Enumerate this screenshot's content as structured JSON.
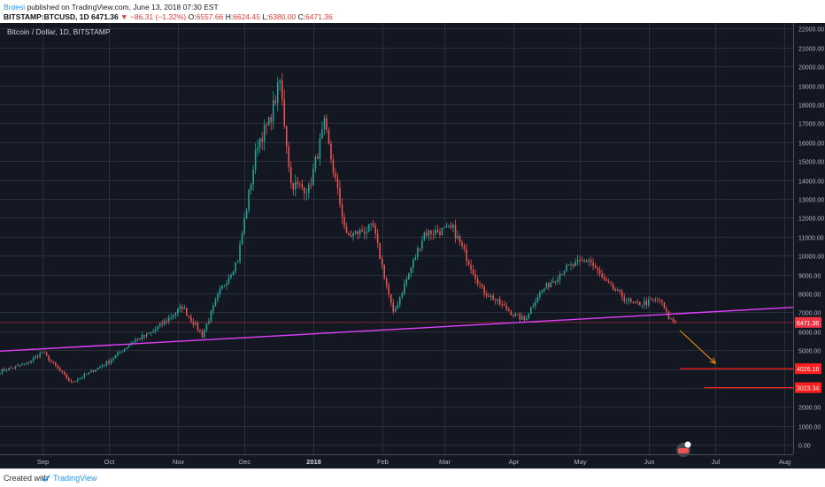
{
  "header": {
    "author": "Brdesi",
    "published": "published on TradingView.com, June 13, 2018 07:30 EST",
    "symbol": "BITSTAMP:BTCUSD, 1D",
    "last": "6471.36",
    "change": "▼ −86.31 (−1.32%)",
    "o_label": "O:",
    "o_value": "6557.66",
    "h_label": "H:",
    "h_value": "6624.45",
    "l_label": "L:",
    "l_value": "6380.00",
    "c_label": "C:",
    "c_value": "6471.36"
  },
  "footer": {
    "created_with": "Created with",
    "brand": "TradingView"
  },
  "colors": {
    "background": "#131722",
    "grid": "#2a2e39",
    "up": "#26a69a",
    "down": "#ef5350",
    "trendline": "#e040fb",
    "arrow": "#ff9800",
    "target": "#ff1f1f",
    "price_tag": "#f23645"
  },
  "chart_data": {
    "type": "candlestick",
    "title": "Bitcoin / Dollar, 1D, BITSTAMP",
    "x_ticks": [
      "Sep",
      "Oct",
      "Nov",
      "Dec",
      "2018",
      "Feb",
      "Mar",
      "Apr",
      "May",
      "Jun",
      "Jul",
      "Aug"
    ],
    "x_tick_dates": [
      "2017-09-01",
      "2017-10-01",
      "2017-11-01",
      "2017-12-01",
      "2018-01-01",
      "2018-02-01",
      "2018-03-01",
      "2018-04-01",
      "2018-05-01",
      "2018-06-01",
      "2018-07-01",
      "2018-08-01"
    ],
    "y_ticks": [
      "22000.00",
      "21000.00",
      "20000.00",
      "19000.00",
      "18000.00",
      "17000.00",
      "16000.00",
      "15000.00",
      "14000.00",
      "13000.00",
      "12000.00",
      "11000.00",
      "10000.00",
      "9000.00",
      "8000.00",
      "7000.00",
      "6000.00",
      "5000.00",
      "4000.00",
      "3000.00",
      "2000.00",
      "1000.00",
      "0.00"
    ],
    "y_tick_values": [
      22000,
      21000,
      20000,
      19000,
      18000,
      17000,
      16000,
      15000,
      14000,
      13000,
      12000,
      11000,
      10000,
      9000,
      8000,
      7000,
      6000,
      5000,
      4000,
      3000,
      2000,
      1000,
      0
    ],
    "ylim": [
      -500,
      22300
    ],
    "x_range": [
      "2017-08-13",
      "2018-08-05"
    ],
    "price_anchors": [
      {
        "date": "2017-08-13",
        "close": 3900
      },
      {
        "date": "2017-08-25",
        "close": 4300
      },
      {
        "date": "2017-09-01",
        "close": 4900
      },
      {
        "date": "2017-09-14",
        "close": 3300
      },
      {
        "date": "2017-09-22",
        "close": 3800
      },
      {
        "date": "2017-10-01",
        "close": 4400
      },
      {
        "date": "2017-10-12",
        "close": 5500
      },
      {
        "date": "2017-10-20",
        "close": 5900
      },
      {
        "date": "2017-11-03",
        "close": 7300
      },
      {
        "date": "2017-11-12",
        "close": 5800
      },
      {
        "date": "2017-11-20",
        "close": 8100
      },
      {
        "date": "2017-11-28",
        "close": 9800
      },
      {
        "date": "2017-12-07",
        "close": 16000
      },
      {
        "date": "2017-12-12",
        "close": 17000
      },
      {
        "date": "2017-12-17",
        "close": 19200
      },
      {
        "date": "2017-12-22",
        "close": 13800
      },
      {
        "date": "2017-12-30",
        "close": 13500
      },
      {
        "date": "2018-01-06",
        "close": 16900
      },
      {
        "date": "2018-01-16",
        "close": 11000
      },
      {
        "date": "2018-01-28",
        "close": 11500
      },
      {
        "date": "2018-02-06",
        "close": 6900
      },
      {
        "date": "2018-02-20",
        "close": 11200
      },
      {
        "date": "2018-03-05",
        "close": 11400
      },
      {
        "date": "2018-03-18",
        "close": 8200
      },
      {
        "date": "2018-04-01",
        "close": 6900
      },
      {
        "date": "2018-04-06",
        "close": 6600
      },
      {
        "date": "2018-04-12",
        "close": 7900
      },
      {
        "date": "2018-04-24",
        "close": 9300
      },
      {
        "date": "2018-05-05",
        "close": 9800
      },
      {
        "date": "2018-05-13",
        "close": 8500
      },
      {
        "date": "2018-05-25",
        "close": 7400
      },
      {
        "date": "2018-06-06",
        "close": 7650
      },
      {
        "date": "2018-06-10",
        "close": 6700
      },
      {
        "date": "2018-06-13",
        "close": 6471
      }
    ],
    "last_price": {
      "value": 6471.36,
      "label": "6471.36"
    },
    "trendline": {
      "start": {
        "date": "2017-08-13",
        "value": 4950
      },
      "end": {
        "date": "2018-08-05",
        "value": 7270
      }
    },
    "projection_arrow": {
      "from": {
        "date": "2018-06-15",
        "value": 6050
      },
      "to": {
        "date": "2018-07-01",
        "value": 4300
      }
    },
    "targets": [
      {
        "value": 4026.18,
        "label": "4026.18",
        "start_date": "2018-06-15"
      },
      {
        "value": 3023.34,
        "label": "3023.34",
        "start_date": "2018-06-26"
      }
    ]
  }
}
